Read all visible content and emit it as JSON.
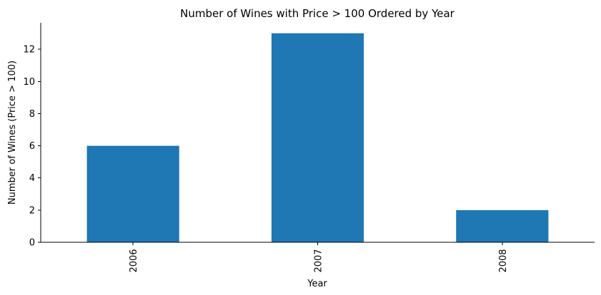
{
  "chart_data": {
    "type": "bar",
    "title": "Number of Wines with Price > 100 Ordered by Year",
    "xlabel": "Year",
    "ylabel": "Number of Wines (Price > 100)",
    "categories": [
      "2006",
      "2007",
      "2008"
    ],
    "values": [
      6,
      13,
      2
    ],
    "ylim": [
      0,
      13.65
    ],
    "yticks": [
      0,
      2,
      4,
      6,
      8,
      10,
      12
    ],
    "grid": false,
    "legend": "none",
    "bar_color": "#1f77b4"
  }
}
